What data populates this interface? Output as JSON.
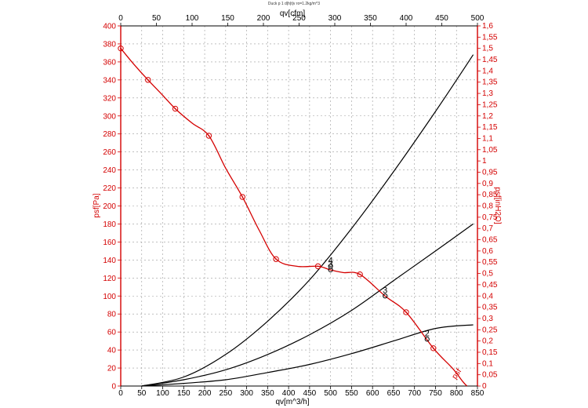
{
  "chart_data": {
    "type": "line",
    "title": "Duck p 1 d|h|t|v ro=1.2kg/m^3",
    "xlabel": "qv[m^3/h]",
    "x2label": "qv[cfm]",
    "ylabel": "psf[Pa]",
    "y2label": "psf[inH2O]",
    "xlim": [
      0,
      850
    ],
    "x2lim": [
      0,
      500
    ],
    "ylim": [
      0,
      400
    ],
    "y2lim": [
      0,
      1.6
    ],
    "x_ticks": [
      "0",
      "50",
      "100",
      "150",
      "200",
      "250",
      "300",
      "350",
      "400",
      "450",
      "500",
      "550",
      "600",
      "650",
      "700",
      "750",
      "800",
      "850"
    ],
    "x2_ticks": [
      "0",
      "50",
      "100",
      "150",
      "200",
      "250",
      "300",
      "350",
      "400",
      "450",
      "500"
    ],
    "y_ticks": [
      "0",
      "20",
      "40",
      "60",
      "80",
      "100",
      "120",
      "140",
      "160",
      "180",
      "200",
      "220",
      "240",
      "260",
      "280",
      "300",
      "320",
      "340",
      "360",
      "380",
      "400"
    ],
    "y2_ticks": [
      "0",
      "0,05",
      "0,1",
      "0,15",
      "0,2",
      "0,25",
      "0,3",
      "0,35",
      "0,4",
      "0,45",
      "0,5",
      "0,55",
      "0,6",
      "0,65",
      "0,7",
      "0,75",
      "0,8",
      "0,85",
      "0,9",
      "0,95",
      "1",
      "1,05",
      "1,1",
      "1,15",
      "1,2",
      "1,25",
      "1,3",
      "1,35",
      "1,4",
      "1,45",
      "1,5",
      "1,55",
      "1,6"
    ],
    "grid": true,
    "fan_curve": {
      "color": "#d40000",
      "x": [
        0,
        30,
        65,
        100,
        130,
        170,
        210,
        250,
        290,
        330,
        370,
        420,
        470,
        500,
        530,
        570,
        630,
        680,
        745,
        790,
        815,
        825
      ],
      "y": [
        375,
        358,
        340,
        323,
        308,
        292,
        278,
        242,
        210,
        173,
        141,
        133,
        133,
        129,
        126,
        124,
        100,
        82,
        42,
        20,
        5,
        0
      ],
      "markers": [
        [
          0,
          375
        ],
        [
          65,
          340
        ],
        [
          130,
          308
        ],
        [
          210,
          278
        ],
        [
          290,
          210
        ],
        [
          370,
          141
        ],
        [
          470,
          133
        ],
        [
          570,
          124
        ],
        [
          680,
          82
        ],
        [
          745,
          42
        ]
      ]
    },
    "system_curves": [
      {
        "color": "#000000",
        "x": [
          50,
          150,
          250,
          350,
          450,
          550,
          650,
          750,
          840
        ],
        "y": [
          0,
          3,
          7,
          15,
          24,
          36,
          50,
          64,
          68
        ]
      },
      {
        "color": "#000000",
        "x": [
          50,
          150,
          250,
          350,
          450,
          550,
          650,
          750,
          840
        ],
        "y": [
          0,
          7,
          18,
          35,
          57,
          84,
          117,
          150,
          180
        ]
      },
      {
        "color": "#000000",
        "x": [
          50,
          150,
          250,
          350,
          450,
          550,
          650,
          750,
          840
        ],
        "y": [
          0,
          10,
          35,
          72,
          118,
          175,
          238,
          305,
          368
        ]
      }
    ],
    "intersections": [
      {
        "label": "2",
        "x": 730,
        "y": 52
      },
      {
        "label": "3",
        "x": 630,
        "y": 100
      },
      {
        "label": "3",
        "x": 500,
        "y": 129
      },
      {
        "label": "4",
        "x": 500,
        "y": 133
      }
    ],
    "curve_label": {
      "text": "psf",
      "x": 805,
      "y": 12
    }
  }
}
